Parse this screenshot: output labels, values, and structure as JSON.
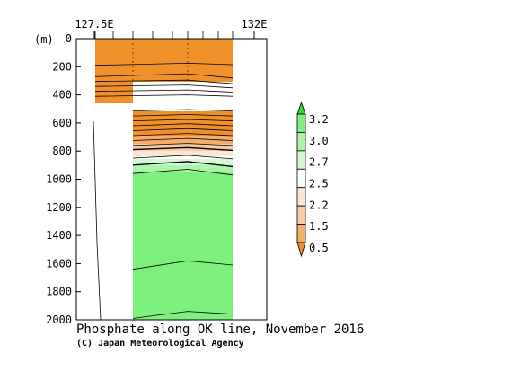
{
  "chart_data": {
    "type": "heatmap",
    "title": "Phosphate along OK line, November 2016",
    "credit": "(C) Japan Meteorological Agency",
    "y_unit_label": "(m)",
    "x_tick_labels": [
      "127.5E",
      "132E"
    ],
    "y_ticks": [
      0,
      200,
      400,
      600,
      800,
      1000,
      1200,
      1400,
      1600,
      1800,
      2000
    ],
    "ylim": [
      2000,
      0
    ],
    "colorbar": {
      "levels": [
        0.5,
        1.5,
        2.2,
        2.5,
        2.7,
        3.0,
        3.2
      ],
      "colors": [
        "#f0902a",
        "#f5ad6a",
        "#f8cba6",
        "#fbe6d6",
        "#ffffff",
        "#d5f7d5",
        "#aaf5aa",
        "#7ef07e",
        "#30d830"
      ]
    },
    "contour_depths_m": [
      {
        "level": "low",
        "left": 190,
        "mid": 175,
        "right": 185
      },
      {
        "level": "low",
        "left": 270,
        "mid": 250,
        "right": 280
      },
      {
        "level": "low",
        "left": 305,
        "mid": 295,
        "right": 320
      },
      {
        "level": "low",
        "left": 340,
        "mid": 330,
        "right": 350
      },
      {
        "level": "low",
        "left": 375,
        "mid": 365,
        "right": 380
      },
      {
        "level": "low",
        "left": 410,
        "mid": 400,
        "right": 410
      },
      {
        "level": "mid",
        "left": 515,
        "mid": 505,
        "right": 515
      },
      {
        "level": "mid",
        "left": 550,
        "mid": 540,
        "right": 550
      },
      {
        "level": "mid",
        "left": 585,
        "mid": 575,
        "right": 585
      },
      {
        "level": "mid",
        "left": 620,
        "mid": 605,
        "right": 620
      },
      {
        "level": "mid",
        "left": 655,
        "mid": 640,
        "right": 655
      },
      {
        "level": "mid",
        "left": 690,
        "mid": 675,
        "right": 690
      },
      {
        "level": "mid",
        "left": 725,
        "mid": 710,
        "right": 725
      },
      {
        "level": "mid",
        "left": 760,
        "mid": 745,
        "right": 760
      },
      {
        "level": "mid",
        "left": 790,
        "mid": 775,
        "right": 795
      },
      {
        "level": "high",
        "left": 850,
        "mid": 830,
        "right": 855
      },
      {
        "level": "high",
        "left": 900,
        "mid": 875,
        "right": 910
      },
      {
        "level": "high",
        "left": 960,
        "mid": 930,
        "right": 970
      },
      {
        "level": "high",
        "left": 1640,
        "mid": 1580,
        "right": 1610
      },
      {
        "level": "high",
        "left": 1990,
        "mid": 1940,
        "right": 1960
      }
    ]
  }
}
